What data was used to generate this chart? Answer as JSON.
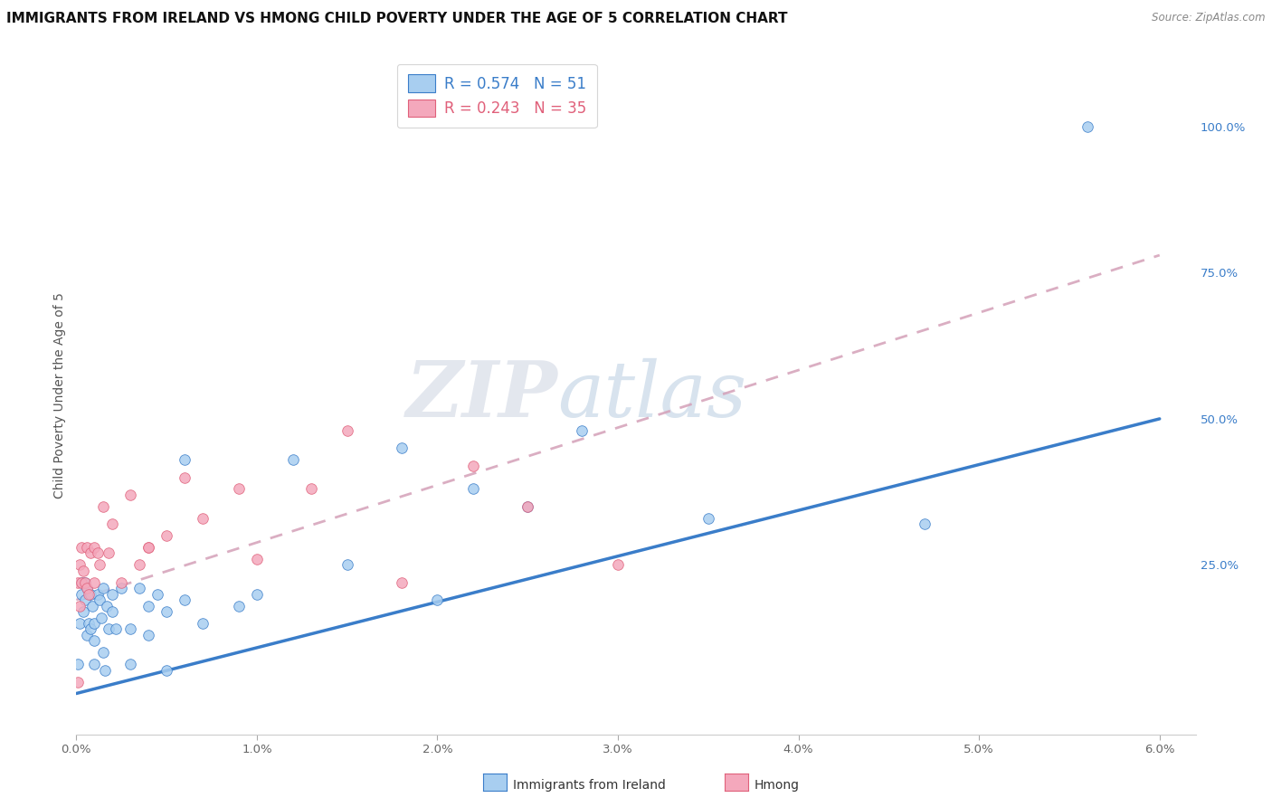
{
  "title": "IMMIGRANTS FROM IRELAND VS HMONG CHILD POVERTY UNDER THE AGE OF 5 CORRELATION CHART",
  "source": "Source: ZipAtlas.com",
  "ylabel": "Child Poverty Under the Age of 5",
  "xlim": [
    0,
    0.062
  ],
  "ylim": [
    -0.04,
    1.12
  ],
  "xtick_labels": [
    "0.0%",
    "1.0%",
    "2.0%",
    "3.0%",
    "4.0%",
    "5.0%",
    "6.0%"
  ],
  "xtick_vals": [
    0.0,
    0.01,
    0.02,
    0.03,
    0.04,
    0.05,
    0.06
  ],
  "ytick_right_labels": [
    "25.0%",
    "50.0%",
    "75.0%",
    "100.0%"
  ],
  "ytick_right_vals": [
    0.25,
    0.5,
    0.75,
    1.0
  ],
  "ireland_color": "#a8cef0",
  "hmong_color": "#f4a8bc",
  "ireland_line_color": "#3a7dc9",
  "hmong_line_color": "#e0607a",
  "hmong_dash_color": "#d4a0b8",
  "legend_ireland_R": "0.574",
  "legend_ireland_N": "51",
  "legend_hmong_R": "0.243",
  "legend_hmong_N": "35",
  "watermark_zip": "ZIP",
  "watermark_atlas": "atlas",
  "ireland_scatter_x": [
    0.0001,
    0.0002,
    0.0003,
    0.0003,
    0.0004,
    0.0005,
    0.0005,
    0.0006,
    0.0006,
    0.0007,
    0.0008,
    0.0008,
    0.0009,
    0.001,
    0.001,
    0.001,
    0.0012,
    0.0013,
    0.0014,
    0.0015,
    0.0015,
    0.0016,
    0.0017,
    0.0018,
    0.002,
    0.002,
    0.0022,
    0.0025,
    0.003,
    0.003,
    0.0035,
    0.004,
    0.004,
    0.0045,
    0.005,
    0.005,
    0.006,
    0.006,
    0.007,
    0.009,
    0.01,
    0.012,
    0.015,
    0.018,
    0.02,
    0.022,
    0.025,
    0.028,
    0.035,
    0.047,
    0.056
  ],
  "ireland_scatter_y": [
    0.08,
    0.15,
    0.2,
    0.22,
    0.17,
    0.19,
    0.22,
    0.13,
    0.21,
    0.15,
    0.2,
    0.14,
    0.18,
    0.12,
    0.15,
    0.08,
    0.2,
    0.19,
    0.16,
    0.21,
    0.1,
    0.07,
    0.18,
    0.14,
    0.17,
    0.2,
    0.14,
    0.21,
    0.08,
    0.14,
    0.21,
    0.13,
    0.18,
    0.2,
    0.17,
    0.07,
    0.19,
    0.43,
    0.15,
    0.18,
    0.2,
    0.43,
    0.25,
    0.45,
    0.19,
    0.38,
    0.35,
    0.48,
    0.33,
    0.32,
    1.0
  ],
  "hmong_scatter_x": [
    0.0001,
    0.0001,
    0.0002,
    0.0002,
    0.0003,
    0.0003,
    0.0004,
    0.0005,
    0.0006,
    0.0006,
    0.0007,
    0.0008,
    0.001,
    0.001,
    0.0012,
    0.0013,
    0.0015,
    0.0018,
    0.002,
    0.0025,
    0.003,
    0.0035,
    0.004,
    0.004,
    0.005,
    0.006,
    0.007,
    0.009,
    0.01,
    0.013,
    0.015,
    0.018,
    0.022,
    0.025,
    0.03
  ],
  "hmong_scatter_y": [
    0.05,
    0.22,
    0.18,
    0.25,
    0.22,
    0.28,
    0.24,
    0.22,
    0.28,
    0.21,
    0.2,
    0.27,
    0.28,
    0.22,
    0.27,
    0.25,
    0.35,
    0.27,
    0.32,
    0.22,
    0.37,
    0.25,
    0.28,
    0.28,
    0.3,
    0.4,
    0.33,
    0.38,
    0.26,
    0.38,
    0.48,
    0.22,
    0.42,
    0.35,
    0.25
  ],
  "ireland_line_x0": 0.0,
  "ireland_line_y0": 0.03,
  "ireland_line_x1": 0.06,
  "ireland_line_y1": 0.5,
  "hmong_line_x0": 0.0,
  "hmong_line_y0": 0.19,
  "hmong_line_x1": 0.06,
  "hmong_line_y1": 0.78,
  "grid_color": "#e0e0ea",
  "title_fontsize": 11,
  "axis_label_fontsize": 10,
  "tick_fontsize": 9.5
}
